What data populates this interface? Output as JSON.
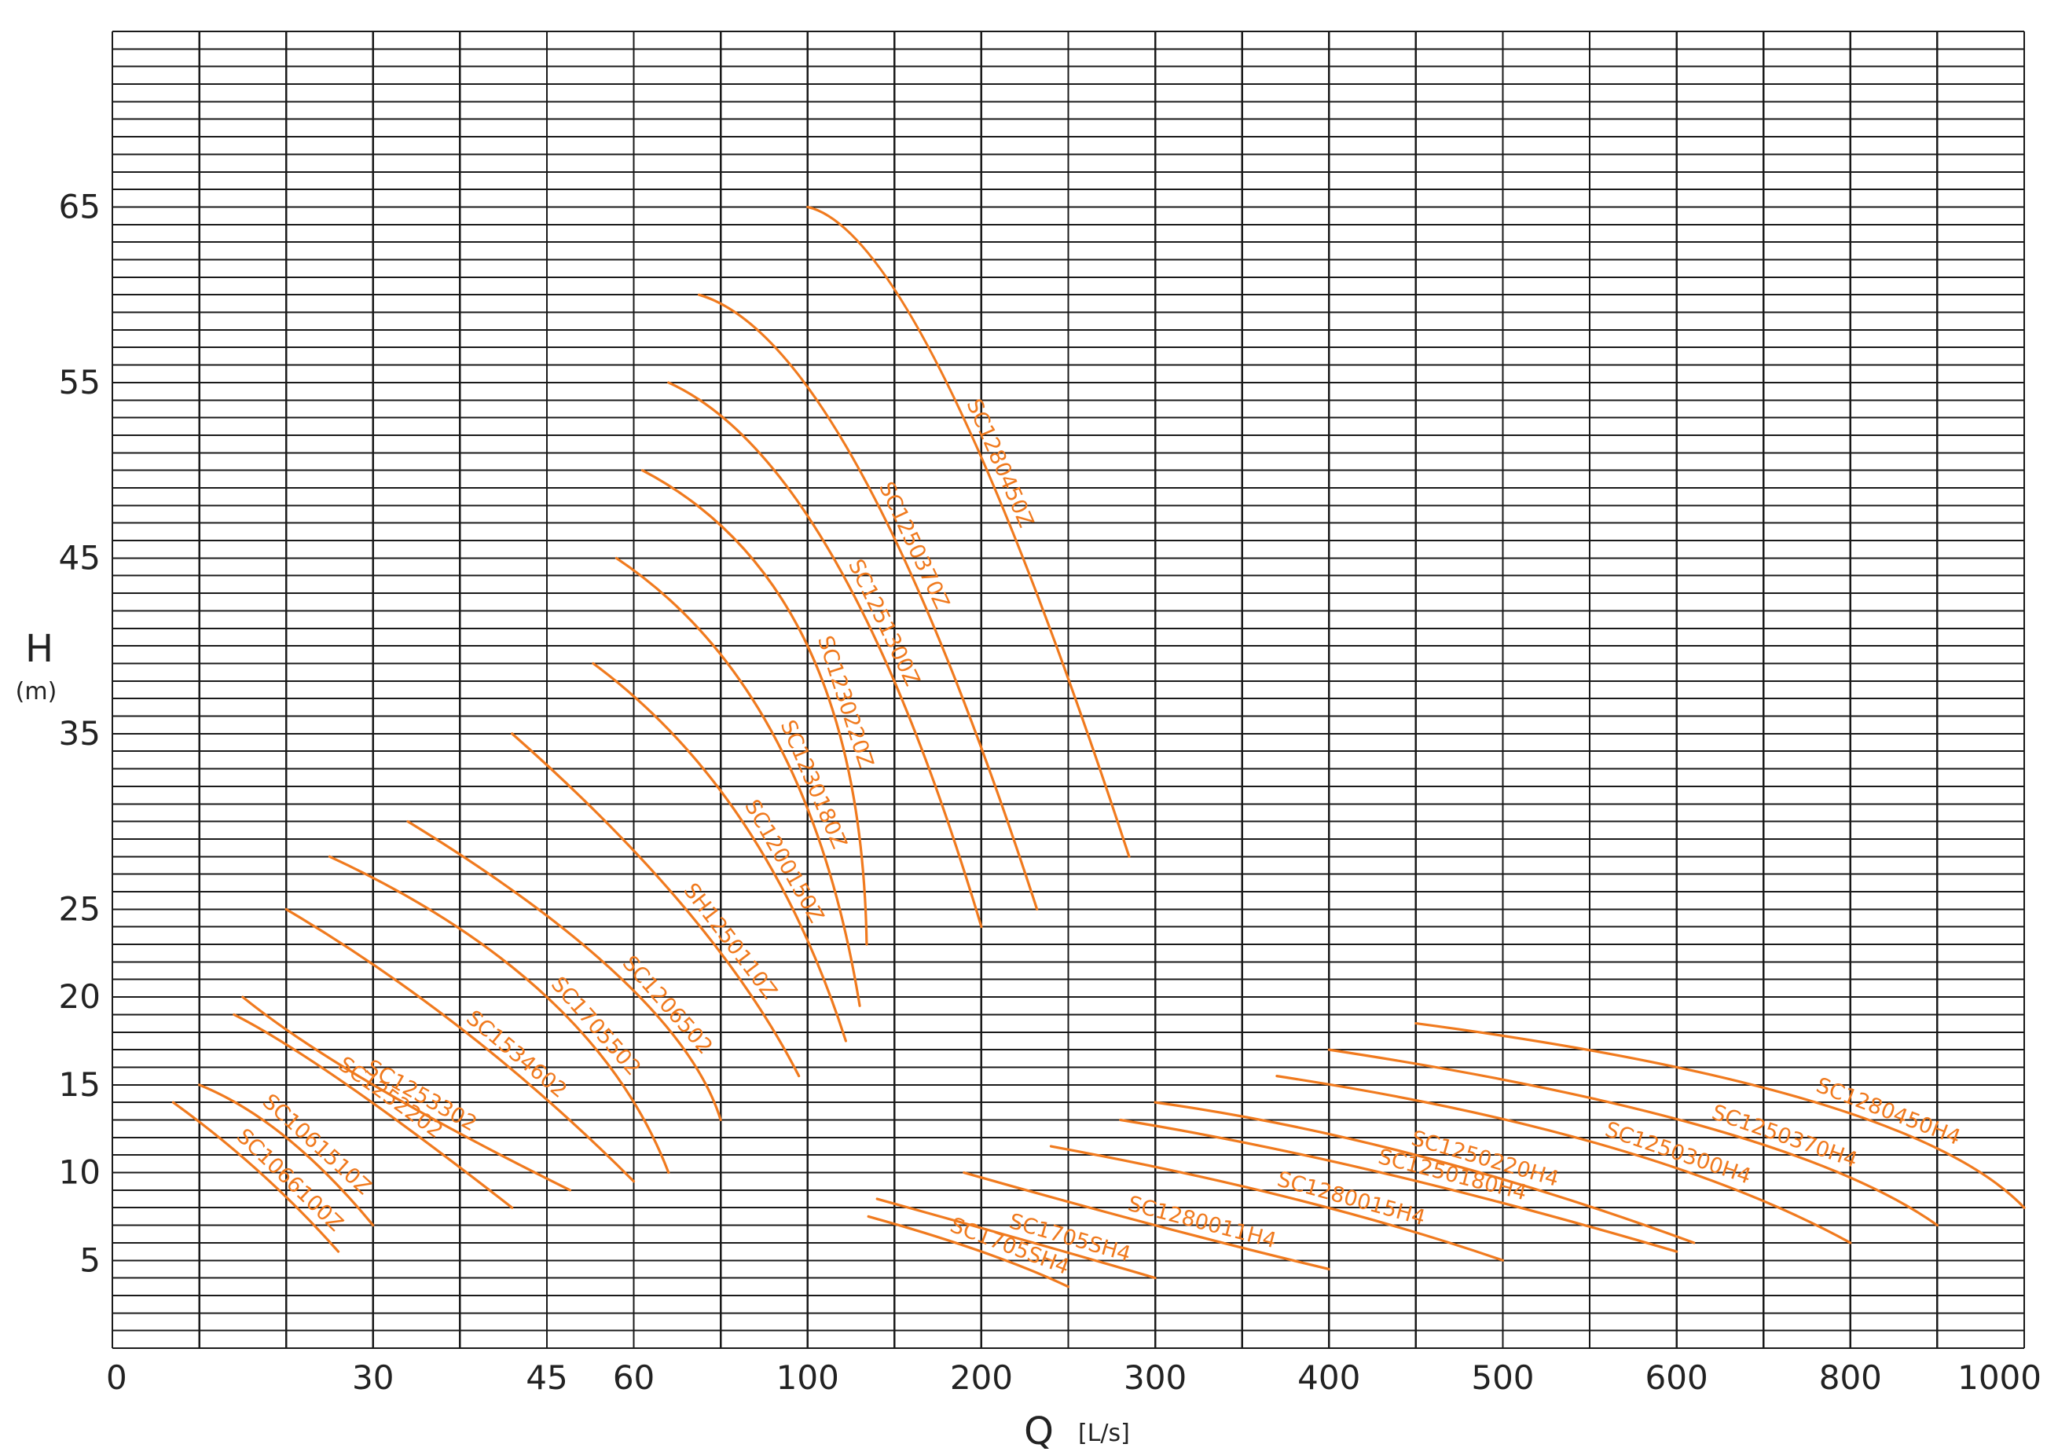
{
  "chart_data": {
    "type": "line",
    "title": "",
    "xlabel": "Q",
    "xlabel_unit": "[L/s]",
    "ylabel": "H",
    "ylabel_unit": "(m)",
    "x_scale": "piecewise",
    "x_tick_labels": [
      "0",
      "30",
      "45",
      "60",
      "100",
      "200",
      "300",
      "400",
      "500",
      "600",
      "800",
      "1000"
    ],
    "y_tick_labels": [
      "5",
      "10",
      "15",
      "20",
      "25",
      "35",
      "45",
      "55",
      "65"
    ],
    "y_tick_values": [
      5,
      10,
      15,
      20,
      25,
      35,
      45,
      55,
      65
    ],
    "grid": true,
    "legend": "none",
    "curve_color": "#f07a1e",
    "grid_color": "#1a1a1a",
    "series": [
      {
        "name": "SC1066100Z",
        "x": [
          7,
          17,
          26
        ],
        "y": [
          14,
          10,
          5.5
        ]
      },
      {
        "name": "SC1061510Z",
        "x": [
          10,
          20,
          30
        ],
        "y": [
          15,
          12,
          7
        ]
      },
      {
        "name": "SC1252202",
        "x": [
          14,
          27,
          42
        ],
        "y": [
          19,
          15,
          8
        ]
      },
      {
        "name": "SC1253302",
        "x": [
          15,
          30,
          49
        ],
        "y": [
          20,
          15,
          9
        ]
      },
      {
        "name": "SC1534602",
        "x": [
          20,
          38,
          60
        ],
        "y": [
          25,
          18,
          9.5
        ]
      },
      {
        "name": "SC1705502",
        "x": [
          25,
          45,
          68
        ],
        "y": [
          28,
          20,
          10
        ]
      },
      {
        "name": "SC1206502",
        "x": [
          33,
          58,
          80
        ],
        "y": [
          30,
          21,
          13
        ]
      },
      {
        "name": "SH1250110Z",
        "x": [
          42,
          72,
          98
        ],
        "y": [
          35,
          25,
          15.5
        ]
      },
      {
        "name": "SC1200150Z",
        "x": [
          53,
          85,
          122
        ],
        "y": [
          39,
          30,
          17.5
        ]
      },
      {
        "name": "SC1230180Z",
        "x": [
          57,
          92,
          130
        ],
        "y": [
          45,
          35,
          19.5
        ]
      },
      {
        "name": "SC1230220Z",
        "x": [
          62,
          100,
          134
        ],
        "y": [
          50,
          40,
          23
        ]
      },
      {
        "name": "SC1251300Z",
        "x": [
          68,
          115,
          200
        ],
        "y": [
          55,
          45,
          24
        ]
      },
      {
        "name": "SC1250370Z",
        "x": [
          75,
          130,
          232
        ],
        "y": [
          60,
          50,
          25
        ]
      },
      {
        "name": "SC1280450Z",
        "x": [
          100,
          180,
          285
        ],
        "y": [
          65,
          55,
          28
        ]
      },
      {
        "name": "SC1705SH4",
        "x": [
          135,
          200,
          250
        ],
        "y": [
          7.5,
          5.5,
          3.5
        ]
      },
      {
        "name": "SC1705SH4",
        "x": [
          140,
          230,
          300
        ],
        "y": [
          8.5,
          6,
          4
        ]
      },
      {
        "name": "SC1280011H4",
        "x": [
          190,
          300,
          400
        ],
        "y": [
          10,
          7,
          4.5
        ]
      },
      {
        "name": "SC1280015H4",
        "x": [
          240,
          380,
          500
        ],
        "y": [
          11.5,
          8.5,
          5
        ]
      },
      {
        "name": "SC1250180H4",
        "x": [
          280,
          430,
          600
        ],
        "y": [
          13,
          10,
          5.5
        ]
      },
      {
        "name": "SC1250220H4",
        "x": [
          300,
          450,
          620
        ],
        "y": [
          14,
          11,
          6
        ]
      },
      {
        "name": "SC1250300H4",
        "x": [
          370,
          560,
          800
        ],
        "y": [
          15.5,
          11.5,
          6
        ]
      },
      {
        "name": "SC1250370H4",
        "x": [
          400,
          640,
          900
        ],
        "y": [
          17,
          12.5,
          7
        ]
      },
      {
        "name": "SC1280450H4",
        "x": [
          450,
          760,
          1000
        ],
        "y": [
          18.5,
          14,
          8
        ]
      }
    ]
  }
}
